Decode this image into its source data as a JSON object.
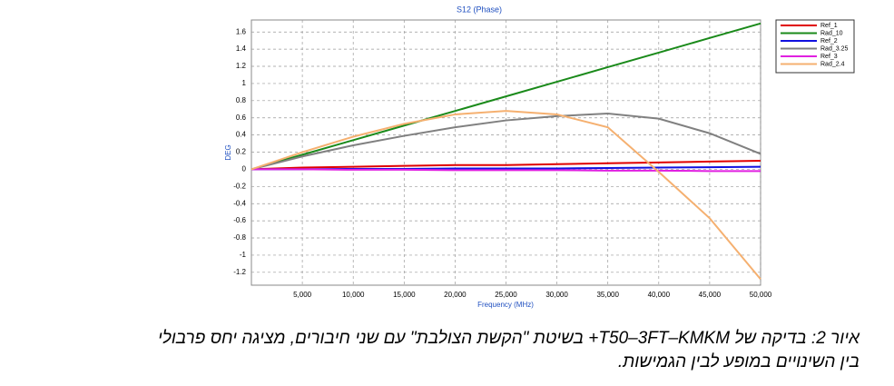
{
  "chart_data": {
    "type": "line",
    "title": "S12 (Phase)",
    "x_label": "Frequency (MHz)",
    "y_label": "DEG",
    "x": [
      0,
      5000,
      10000,
      15000,
      20000,
      25000,
      30000,
      35000,
      40000,
      45000,
      50000
    ],
    "xlim": [
      0,
      50000
    ],
    "ylim": [
      -1.35,
      1.74
    ],
    "xticks": [
      {
        "value": 5000,
        "label": "5,000"
      },
      {
        "value": 10000,
        "label": "10,000"
      },
      {
        "value": 15000,
        "label": "15,000"
      },
      {
        "value": 20000,
        "label": "20,000"
      },
      {
        "value": 25000,
        "label": "25,000"
      },
      {
        "value": 30000,
        "label": "30,000"
      },
      {
        "value": 35000,
        "label": "35,000"
      },
      {
        "value": 40000,
        "label": "40,000"
      },
      {
        "value": 45000,
        "label": "45,000"
      },
      {
        "value": 50000,
        "label": "50,000"
      }
    ],
    "yticks": [
      1.6,
      1.4,
      1.2,
      1,
      0.8,
      0.6,
      0.4,
      0.2,
      0,
      -0.2,
      -0.4,
      -0.6,
      -0.8,
      -1,
      -1.2
    ],
    "grid": true,
    "legend": "right",
    "series": [
      {
        "name": "Ref_1",
        "color": "#e00000",
        "values": [
          0,
          0.02,
          0.03,
          0.04,
          0.05,
          0.05,
          0.06,
          0.07,
          0.08,
          0.09,
          0.1
        ]
      },
      {
        "name": "Rad_10",
        "color": "#1a8a1a",
        "values": [
          0,
          0.17,
          0.34,
          0.51,
          0.68,
          0.85,
          1.02,
          1.19,
          1.36,
          1.53,
          1.7
        ]
      },
      {
        "name": "Ref_2",
        "color": "#1010e0",
        "values": [
          0,
          0,
          0.005,
          0.005,
          0.01,
          0.01,
          0.01,
          0.015,
          0.02,
          0.025,
          0.03
        ]
      },
      {
        "name": "Rad_3.25",
        "color": "#808080",
        "values": [
          0,
          0.15,
          0.28,
          0.39,
          0.49,
          0.57,
          0.62,
          0.65,
          0.59,
          0.42,
          0.18
        ]
      },
      {
        "name": "Ref_3",
        "color": "#e020e0",
        "values": [
          0,
          0,
          -0.005,
          -0.005,
          -0.01,
          -0.01,
          -0.01,
          -0.015,
          -0.015,
          -0.02,
          -0.02
        ]
      },
      {
        "name": "Rad_2.4",
        "color": "#f5b070",
        "values": [
          0,
          0.2,
          0.38,
          0.53,
          0.64,
          0.68,
          0.64,
          0.49,
          -0.03,
          -0.57,
          -1.28
        ]
      }
    ]
  },
  "caption": [
    "איור 2: בדיקה של T50–3FT–KMKM+ בשיטת \"הקשת הצולבת\" עם שני חיבורים, מציגה יחס פרבולי",
    "בין השינויים במופע לבין הגמישות."
  ]
}
